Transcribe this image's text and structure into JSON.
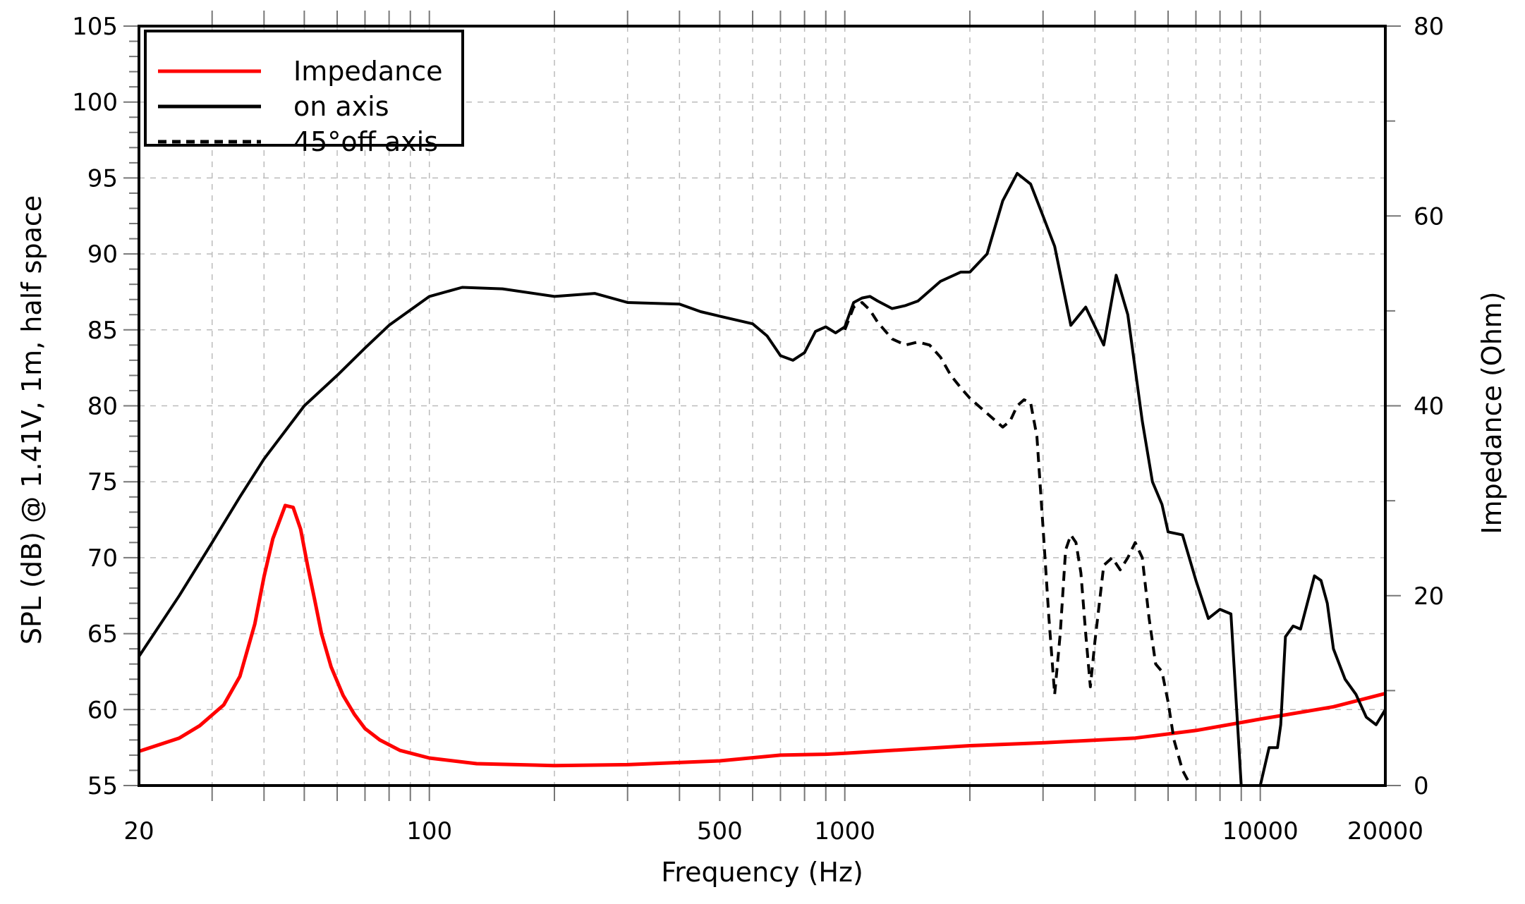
{
  "chart_data": {
    "type": "line",
    "title": "",
    "xlabel": "Frequency (Hz)",
    "ylabel": "SPL (dB) @ 1.41V, 1m, half space",
    "y2label": "Impedance (Ohm)",
    "xscale": "log",
    "xlim": [
      20,
      20000
    ],
    "ylim": [
      55,
      105
    ],
    "y2lim": [
      0,
      80
    ],
    "grid": true,
    "legend_position": "upper left",
    "x_tick_labels": [
      "20",
      "100",
      "500",
      "1000",
      "10000",
      "20000"
    ],
    "x_ticks": [
      20,
      100,
      500,
      1000,
      10000,
      20000
    ],
    "y_ticks": [
      55,
      60,
      65,
      70,
      75,
      80,
      85,
      90,
      95,
      100,
      105
    ],
    "y2_ticks": [
      0,
      20,
      40,
      60,
      80
    ],
    "legend": [
      "Impedance",
      "on axis",
      "45°off axis"
    ],
    "series": [
      {
        "name": "Impedance",
        "axis": "right",
        "color": "#ff0000",
        "style": "solid",
        "x": [
          20,
          22,
          25,
          28,
          32,
          35,
          38,
          40,
          42,
          45,
          47,
          49,
          51,
          53,
          55,
          58,
          62,
          66,
          70,
          76,
          85,
          100,
          130,
          200,
          300,
          500,
          700,
          900,
          1000,
          2000,
          3000,
          5000,
          7000,
          10000,
          15000,
          20000
        ],
        "y": [
          3.6,
          4.2,
          5.0,
          6.3,
          8.5,
          11.5,
          17,
          22,
          26,
          29.5,
          29.3,
          27,
          23,
          19.5,
          16,
          12.5,
          9.5,
          7.5,
          6.0,
          4.8,
          3.7,
          2.9,
          2.3,
          2.1,
          2.2,
          2.6,
          3.2,
          3.3,
          3.4,
          4.2,
          4.5,
          5.0,
          5.8,
          7.0,
          8.3,
          9.7
        ]
      },
      {
        "name": "on axis",
        "axis": "left",
        "color": "#000000",
        "style": "solid",
        "x": [
          20,
          25,
          30,
          35,
          40,
          50,
          60,
          70,
          80,
          100,
          120,
          150,
          200,
          250,
          300,
          400,
          450,
          500,
          600,
          650,
          700,
          750,
          800,
          850,
          900,
          950,
          1000,
          1050,
          1100,
          1150,
          1200,
          1300,
          1400,
          1500,
          1700,
          1900,
          2000,
          2200,
          2400,
          2600,
          2800,
          3000,
          3200,
          3500,
          3800,
          4200,
          4500,
          4800,
          5200,
          5500,
          5800,
          6000,
          6500,
          7000,
          7500,
          8000,
          8500,
          9000,
          9500,
          10000,
          10500,
          11000,
          11200,
          11500,
          12000,
          12500,
          13500,
          14000,
          14500,
          15000,
          16000,
          17000,
          18000,
          19000,
          20000
        ],
        "y": [
          63.5,
          67.5,
          71,
          74,
          76.5,
          80,
          82,
          83.8,
          85.3,
          87.2,
          87.8,
          87.7,
          87.2,
          87.4,
          86.8,
          86.7,
          86.2,
          85.9,
          85.4,
          84.6,
          83.3,
          83.0,
          83.5,
          84.9,
          85.2,
          84.8,
          85.2,
          86.8,
          87.1,
          87.2,
          86.9,
          86.4,
          86.6,
          86.9,
          88.2,
          88.8,
          88.8,
          90.0,
          93.5,
          95.3,
          94.6,
          92.5,
          90.5,
          85.3,
          86.5,
          84.0,
          88.6,
          86.0,
          79.0,
          75.0,
          73.5,
          71.7,
          71.5,
          68.5,
          66.0,
          66.6,
          66.3,
          55.0,
          54.0,
          55.0,
          57.5,
          57.5,
          59.0,
          64.8,
          65.5,
          65.3,
          68.8,
          68.5,
          67.0,
          64.0,
          62.0,
          61.0,
          59.5,
          59.0,
          60.0
        ]
      },
      {
        "name": "45°off axis",
        "axis": "left",
        "color": "#000000",
        "style": "dashed",
        "x": [
          1000,
          1050,
          1100,
          1150,
          1200,
          1300,
          1400,
          1500,
          1600,
          1700,
          1800,
          1900,
          2000,
          2200,
          2400,
          2500,
          2600,
          2700,
          2800,
          2900,
          3000,
          3100,
          3200,
          3300,
          3400,
          3500,
          3600,
          3700,
          3800,
          3900,
          4000,
          4200,
          4400,
          4600,
          4800,
          5000,
          5200,
          5400,
          5600,
          5800,
          6000,
          6200,
          6500,
          6800,
          7000,
          7300,
          7600
        ],
        "y": [
          85.0,
          86.5,
          86.8,
          86.3,
          85.5,
          84.4,
          84.0,
          84.2,
          84.0,
          83.2,
          82.0,
          81.2,
          80.5,
          79.5,
          78.6,
          79.0,
          80.0,
          80.4,
          80.2,
          78.0,
          72.0,
          66.0,
          61.0,
          65.0,
          70.5,
          71.5,
          71.0,
          69.0,
          65.0,
          61.5,
          64.5,
          69.5,
          70.0,
          69.2,
          70.0,
          71.0,
          70.0,
          66.0,
          63.0,
          62.5,
          60.5,
          58.0,
          56.0,
          55.0,
          55.0,
          55.0,
          55.0
        ]
      }
    ]
  },
  "axes": {
    "x_title": "Frequency (Hz)",
    "y_left_title": "SPL (dB) @ 1.41V, 1m, half space",
    "y_right_title": "Impedance (Ohm)"
  },
  "legend": {
    "items": [
      {
        "label": "Impedance",
        "color": "#ff0000",
        "style": "solid"
      },
      {
        "label": "on axis",
        "color": "#000000",
        "style": "solid"
      },
      {
        "label": "45°off axis",
        "color": "#000000",
        "style": "dashed"
      }
    ]
  },
  "colors": {
    "impedance": "#ff0000",
    "spl": "#000000",
    "grid": "#bbbbbb",
    "frame": "#000000"
  }
}
